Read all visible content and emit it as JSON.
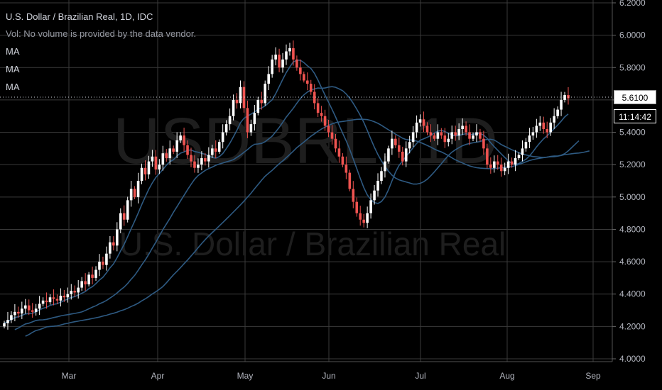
{
  "legend": {
    "title": "U.S. Dollar / Brazilian Real, 1D, IDC",
    "vol": "Vol: No volume is provided by the data vendor.",
    "ma": [
      "MA",
      "MA",
      "MA"
    ]
  },
  "watermark": {
    "symbol": "USDBRL, 1D",
    "name": "U.S. Dollar / Brazilian Real"
  },
  "price_badge": "5.6100",
  "time_badge": "11:14:42",
  "colors": {
    "up": "#ffffff",
    "down": "#ef5350",
    "ma": "#2e5a82",
    "grid": "#3a3a3a",
    "axis": "#b2b5be"
  },
  "chart_data": {
    "type": "candlestick",
    "title": "U.S. Dollar / Brazilian Real, 1D, IDC",
    "y_ticks": [
      "6.2000",
      "6.0000",
      "5.8000",
      "5.6000",
      "5.4000",
      "5.2000",
      "5.0000",
      "4.8000",
      "4.6000",
      "4.4000",
      "4.2000",
      "4.0000"
    ],
    "ylim": [
      4.0,
      6.2
    ],
    "x_ticks": [
      "Mar",
      "Apr",
      "May",
      "Jun",
      "Jul",
      "Aug",
      "Sep"
    ],
    "last_price": 5.61,
    "close": [
      4.22,
      4.24,
      4.27,
      4.29,
      4.28,
      4.31,
      4.33,
      4.3,
      4.29,
      4.31,
      4.34,
      4.36,
      4.35,
      4.38,
      4.37,
      4.36,
      4.39,
      4.38,
      4.4,
      4.42,
      4.41,
      4.44,
      4.48,
      4.46,
      4.52,
      4.5,
      4.55,
      4.6,
      4.58,
      4.65,
      4.72,
      4.7,
      4.8,
      4.9,
      4.86,
      4.98,
      5.05,
      5.0,
      5.1,
      5.18,
      5.14,
      5.22,
      5.25,
      5.17,
      5.2,
      5.27,
      5.24,
      5.3,
      5.28,
      5.35,
      5.38,
      5.32,
      5.26,
      5.22,
      5.18,
      5.2,
      5.24,
      5.22,
      5.26,
      5.3,
      5.28,
      5.34,
      5.4,
      5.45,
      5.5,
      5.6,
      5.58,
      5.68,
      5.55,
      5.4,
      5.45,
      5.52,
      5.6,
      5.58,
      5.7,
      5.76,
      5.85,
      5.88,
      5.8,
      5.85,
      5.9,
      5.92,
      5.85,
      5.8,
      5.76,
      5.72,
      5.7,
      5.65,
      5.58,
      5.52,
      5.5,
      5.44,
      5.4,
      5.36,
      5.3,
      5.25,
      5.2,
      5.15,
      5.05,
      4.97,
      4.9,
      4.86,
      4.84,
      4.9,
      4.98,
      5.04,
      5.1,
      5.16,
      5.22,
      5.3,
      5.36,
      5.32,
      5.28,
      5.22,
      5.3,
      5.34,
      5.4,
      5.46,
      5.48,
      5.44,
      5.4,
      5.38,
      5.36,
      5.4,
      5.38,
      5.34,
      5.36,
      5.4,
      5.38,
      5.42,
      5.44,
      5.4,
      5.36,
      5.38,
      5.4,
      5.36,
      5.3,
      5.2,
      5.18,
      5.22,
      5.2,
      5.16,
      5.18,
      5.22,
      5.2,
      5.24,
      5.26,
      5.3,
      5.34,
      5.38,
      5.4,
      5.44,
      5.46,
      5.42,
      5.4,
      5.46,
      5.5,
      5.54,
      5.6,
      5.63,
      5.61
    ]
  }
}
